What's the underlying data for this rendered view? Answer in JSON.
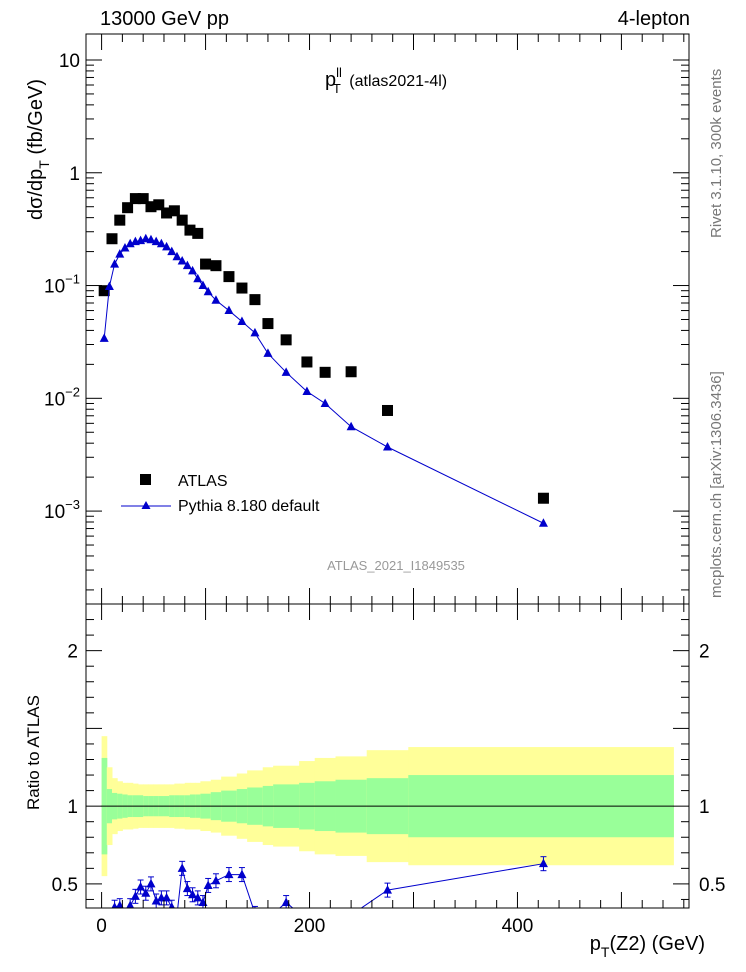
{
  "header": {
    "left": "13000 GeV pp",
    "right": "4-lepton"
  },
  "side_labels": {
    "rivet": "Rivet 3.1.10,  300k events",
    "mcplots": "mcplots.cern.ch [arXiv:1306.3436]"
  },
  "watermark": "ATLAS_2021_I1849535",
  "chart_data": [
    {
      "type": "scatter",
      "title": {
        "main": "p",
        "sup": "ll",
        "sub": "T",
        "rest": " (atlas2021-4l)"
      },
      "xlabel": {
        "main": "p",
        "sub": "T",
        "rest": "(Z2) (GeV)"
      },
      "ylabel": {
        "main": "dσ/dp",
        "sub": "T",
        "rest": " (fb/GeV)"
      },
      "yscale": "log",
      "ylim": [
        0.00015,
        17
      ],
      "xlim": [
        -15,
        565
      ],
      "y_ticks": [
        {
          "value": 10,
          "label": "10"
        },
        {
          "value": 1,
          "label": "1"
        },
        {
          "value": 0.1,
          "label": "10",
          "exp": "−1"
        },
        {
          "value": 0.01,
          "label": "10",
          "exp": "−2"
        },
        {
          "value": 0.001,
          "label": "10",
          "exp": "−3"
        }
      ],
      "legend": {
        "placement": "bottom-left"
      },
      "series": [
        {
          "name": "ATLAS",
          "color": "#000000",
          "marker": "square",
          "x": [
            2.5,
            10,
            17.5,
            25,
            32.5,
            40,
            47.5,
            55,
            62.5,
            70,
            77.5,
            85,
            92.5,
            100,
            110,
            122.5,
            135,
            147.5,
            160,
            177.5,
            197.5,
            215,
            240,
            275,
            425
          ],
          "y": [
            0.09,
            0.26,
            0.38,
            0.49,
            0.59,
            0.59,
            0.5,
            0.52,
            0.44,
            0.46,
            0.38,
            0.31,
            0.29,
            0.155,
            0.15,
            0.12,
            0.095,
            0.075,
            0.046,
            0.033,
            0.021,
            0.017,
            0.0172,
            0.0078,
            0.0013
          ]
        },
        {
          "name": "Pythia 8.180 default",
          "color": "#0000cc",
          "marker": "triangle",
          "x": [
            2.5,
            7.5,
            12.5,
            17.5,
            22.5,
            27.5,
            32.5,
            37.5,
            42.5,
            47.5,
            52.5,
            57.5,
            62.5,
            67.5,
            72.5,
            77.5,
            82.5,
            87.5,
            92.5,
            97.5,
            102.5,
            110,
            122.5,
            135,
            147.5,
            160,
            177.5,
            197.5,
            215,
            240,
            275,
            425
          ],
          "y": [
            0.034,
            0.098,
            0.155,
            0.19,
            0.215,
            0.235,
            0.245,
            0.25,
            0.26,
            0.255,
            0.245,
            0.235,
            0.22,
            0.2,
            0.18,
            0.165,
            0.15,
            0.135,
            0.115,
            0.1,
            0.088,
            0.074,
            0.06,
            0.048,
            0.038,
            0.025,
            0.017,
            0.0115,
            0.009,
            0.0056,
            0.0037,
            0.00078
          ]
        }
      ]
    },
    {
      "type": "line",
      "ylabel": "Ratio to ATLAS",
      "ylim": [
        0.345,
        2.3
      ],
      "xlim": [
        -15,
        565
      ],
      "y_ticks": [
        0.5,
        1,
        2
      ],
      "x_ticks": [
        0,
        200,
        400
      ],
      "reference_line": 1,
      "bands": {
        "edges": [
          0,
          5,
          10,
          15,
          20,
          25,
          30,
          35,
          40,
          45,
          50,
          55,
          60,
          65,
          70,
          75,
          80,
          85,
          90,
          95,
          105,
          115,
          130,
          140,
          155,
          165,
          190,
          205,
          225,
          255,
          295,
          550
        ],
        "yellow_half": [
          0.45,
          0.25,
          0.18,
          0.16,
          0.15,
          0.15,
          0.145,
          0.14,
          0.14,
          0.14,
          0.14,
          0.14,
          0.14,
          0.14,
          0.145,
          0.145,
          0.15,
          0.15,
          0.15,
          0.16,
          0.17,
          0.19,
          0.21,
          0.23,
          0.25,
          0.26,
          0.29,
          0.31,
          0.32,
          0.36,
          0.38,
          0.4
        ],
        "green_half": [
          0.31,
          0.11,
          0.085,
          0.08,
          0.075,
          0.07,
          0.07,
          0.07,
          0.065,
          0.065,
          0.065,
          0.065,
          0.065,
          0.07,
          0.07,
          0.07,
          0.07,
          0.075,
          0.075,
          0.08,
          0.09,
          0.1,
          0.11,
          0.12,
          0.13,
          0.14,
          0.15,
          0.16,
          0.17,
          0.18,
          0.2,
          0.2
        ],
        "yellow_color": "#ffff99",
        "green_color": "#99ff99"
      },
      "series": [
        {
          "name": "Pythia 8.180 default",
          "color": "#0000cc",
          "x": [
            2.5,
            7.5,
            12.5,
            17.5,
            22.5,
            27.5,
            32.5,
            37.5,
            42.5,
            47.5,
            52.5,
            57.5,
            62.5,
            67.5,
            72.5,
            77.5,
            82.5,
            87.5,
            92.5,
            97.5,
            102.5,
            110,
            122.5,
            135,
            147.5,
            160,
            177.5,
            197.5,
            215,
            240,
            275,
            425
          ],
          "y": [
            0.3,
            0.29,
            0.35,
            0.36,
            0.3,
            0.36,
            0.42,
            0.48,
            0.44,
            0.5,
            0.39,
            0.41,
            0.41,
            0.35,
            0.3,
            0.6,
            0.47,
            0.43,
            0.41,
            0.38,
            0.49,
            0.52,
            0.56,
            0.56,
            0.31,
            0.28,
            0.38,
            0.27,
            0.3,
            0.3,
            0.46,
            0.63
          ]
        }
      ]
    }
  ]
}
